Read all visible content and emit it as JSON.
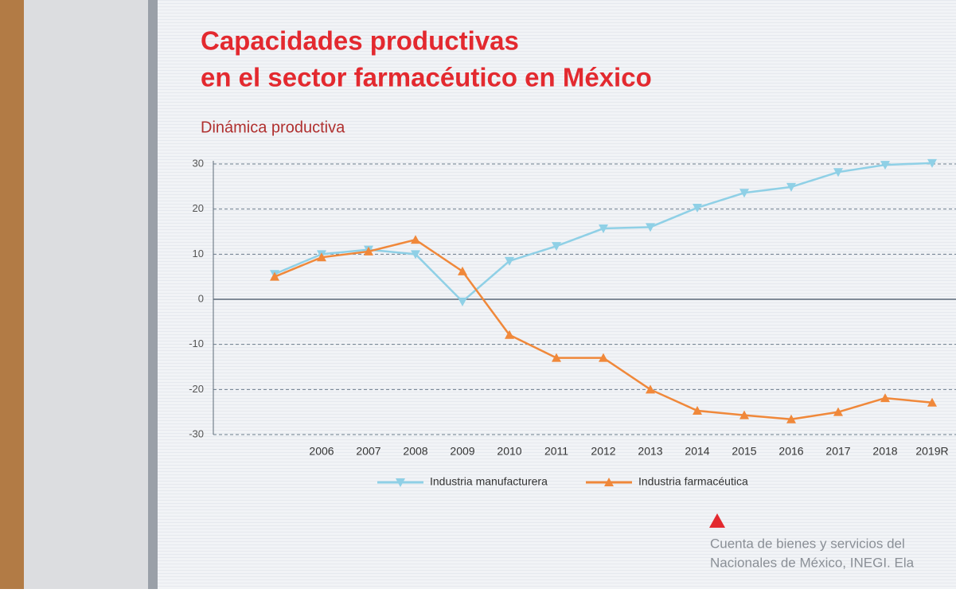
{
  "chart_data": {
    "type": "line",
    "title": [
      "Capacidades productivas",
      "en el sector farmacéutico en México"
    ],
    "subtitle": "Dinámica productiva",
    "categories": [
      null,
      "2006",
      "2007",
      "2008",
      "2009",
      "2010",
      "2011",
      "2012",
      "2013",
      "2014",
      "2015",
      "2016",
      "2017",
      "2018",
      "2019R"
    ],
    "series": [
      {
        "name": "Industria manufacturera",
        "color": "#8fd0e6",
        "marker": "down",
        "values": [
          5.6,
          10,
          11,
          10,
          -0.5,
          8.5,
          11.8,
          15.7,
          16,
          20.3,
          23.6,
          24.9,
          28.2,
          29.8,
          30.2
        ]
      },
      {
        "name": "Industria farmacéutica",
        "color": "#f0883a",
        "marker": "up",
        "values": [
          5,
          9.3,
          10.6,
          13.2,
          6.2,
          -7.9,
          -13,
          -13,
          -20,
          -24.7,
          -25.7,
          -26.6,
          -25,
          -21.9,
          -22.9
        ]
      }
    ],
    "ylim": [
      -30,
      30
    ],
    "yticks": [
      -30,
      -20,
      -10,
      0,
      10,
      20,
      30
    ],
    "grid": true,
    "source": [
      "Cuenta de bienes y servicios del",
      "Nacionales de México, INEGI. Ela"
    ]
  }
}
